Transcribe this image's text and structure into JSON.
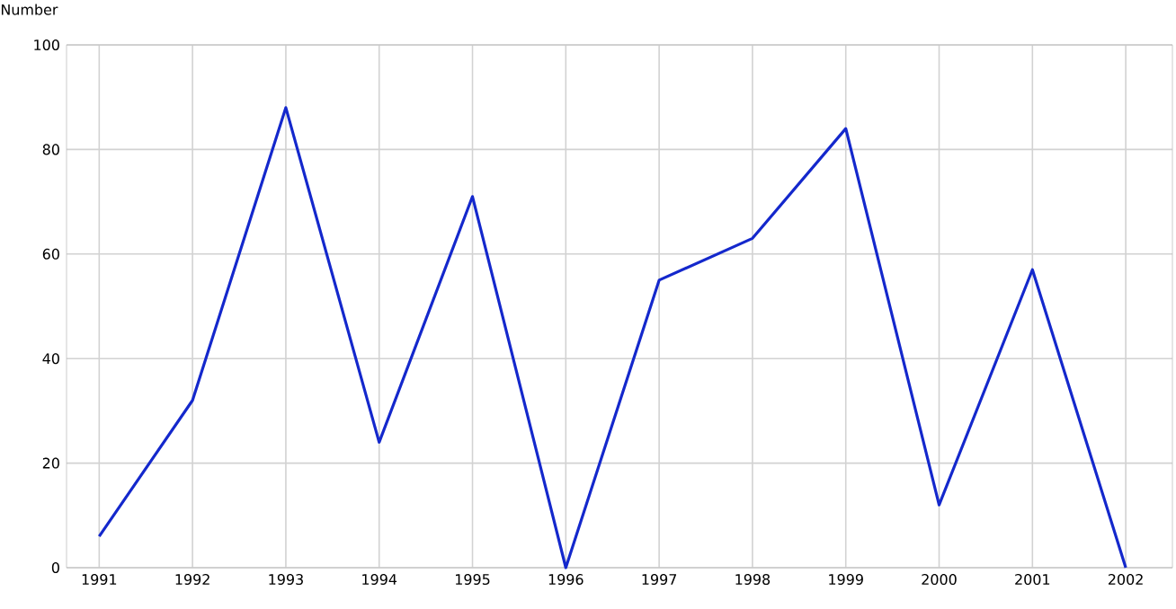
{
  "chart_data": {
    "type": "line",
    "ylabel": "Number",
    "x": [
      1991,
      1992,
      1993,
      1994,
      1995,
      1996,
      1997,
      1998,
      1999,
      2000,
      2001,
      2002
    ],
    "series": [
      {
        "color": "#1428cc",
        "values": [
          6,
          32,
          88,
          24,
          71,
          0,
          55,
          63,
          84,
          12,
          57,
          0
        ]
      }
    ],
    "xlim": [
      1990.65,
      2002.5
    ],
    "ylim": [
      0,
      100
    ],
    "xticks": [
      1991,
      1992,
      1993,
      1994,
      1995,
      1996,
      1997,
      1998,
      1999,
      2000,
      2001,
      2002
    ],
    "yticks": [
      0,
      20,
      40,
      60,
      80,
      100
    ],
    "grid": true,
    "marker": "none",
    "line_style": "solid"
  }
}
